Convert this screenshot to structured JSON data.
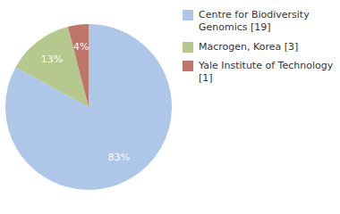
{
  "chart_data": {
    "type": "pie",
    "categories": [
      "Centre for Biodiversity\nGenomics [19]",
      "Macrogen, Korea [3]",
      "Yale Institute of Technology [1]"
    ],
    "values": [
      83,
      13,
      4
    ],
    "value_labels": [
      "83%",
      "13%",
      "4%"
    ],
    "colors": [
      "#aec6e8",
      "#b5c98e",
      "#c0756a"
    ],
    "data_labels": true,
    "legend": "upper right"
  }
}
